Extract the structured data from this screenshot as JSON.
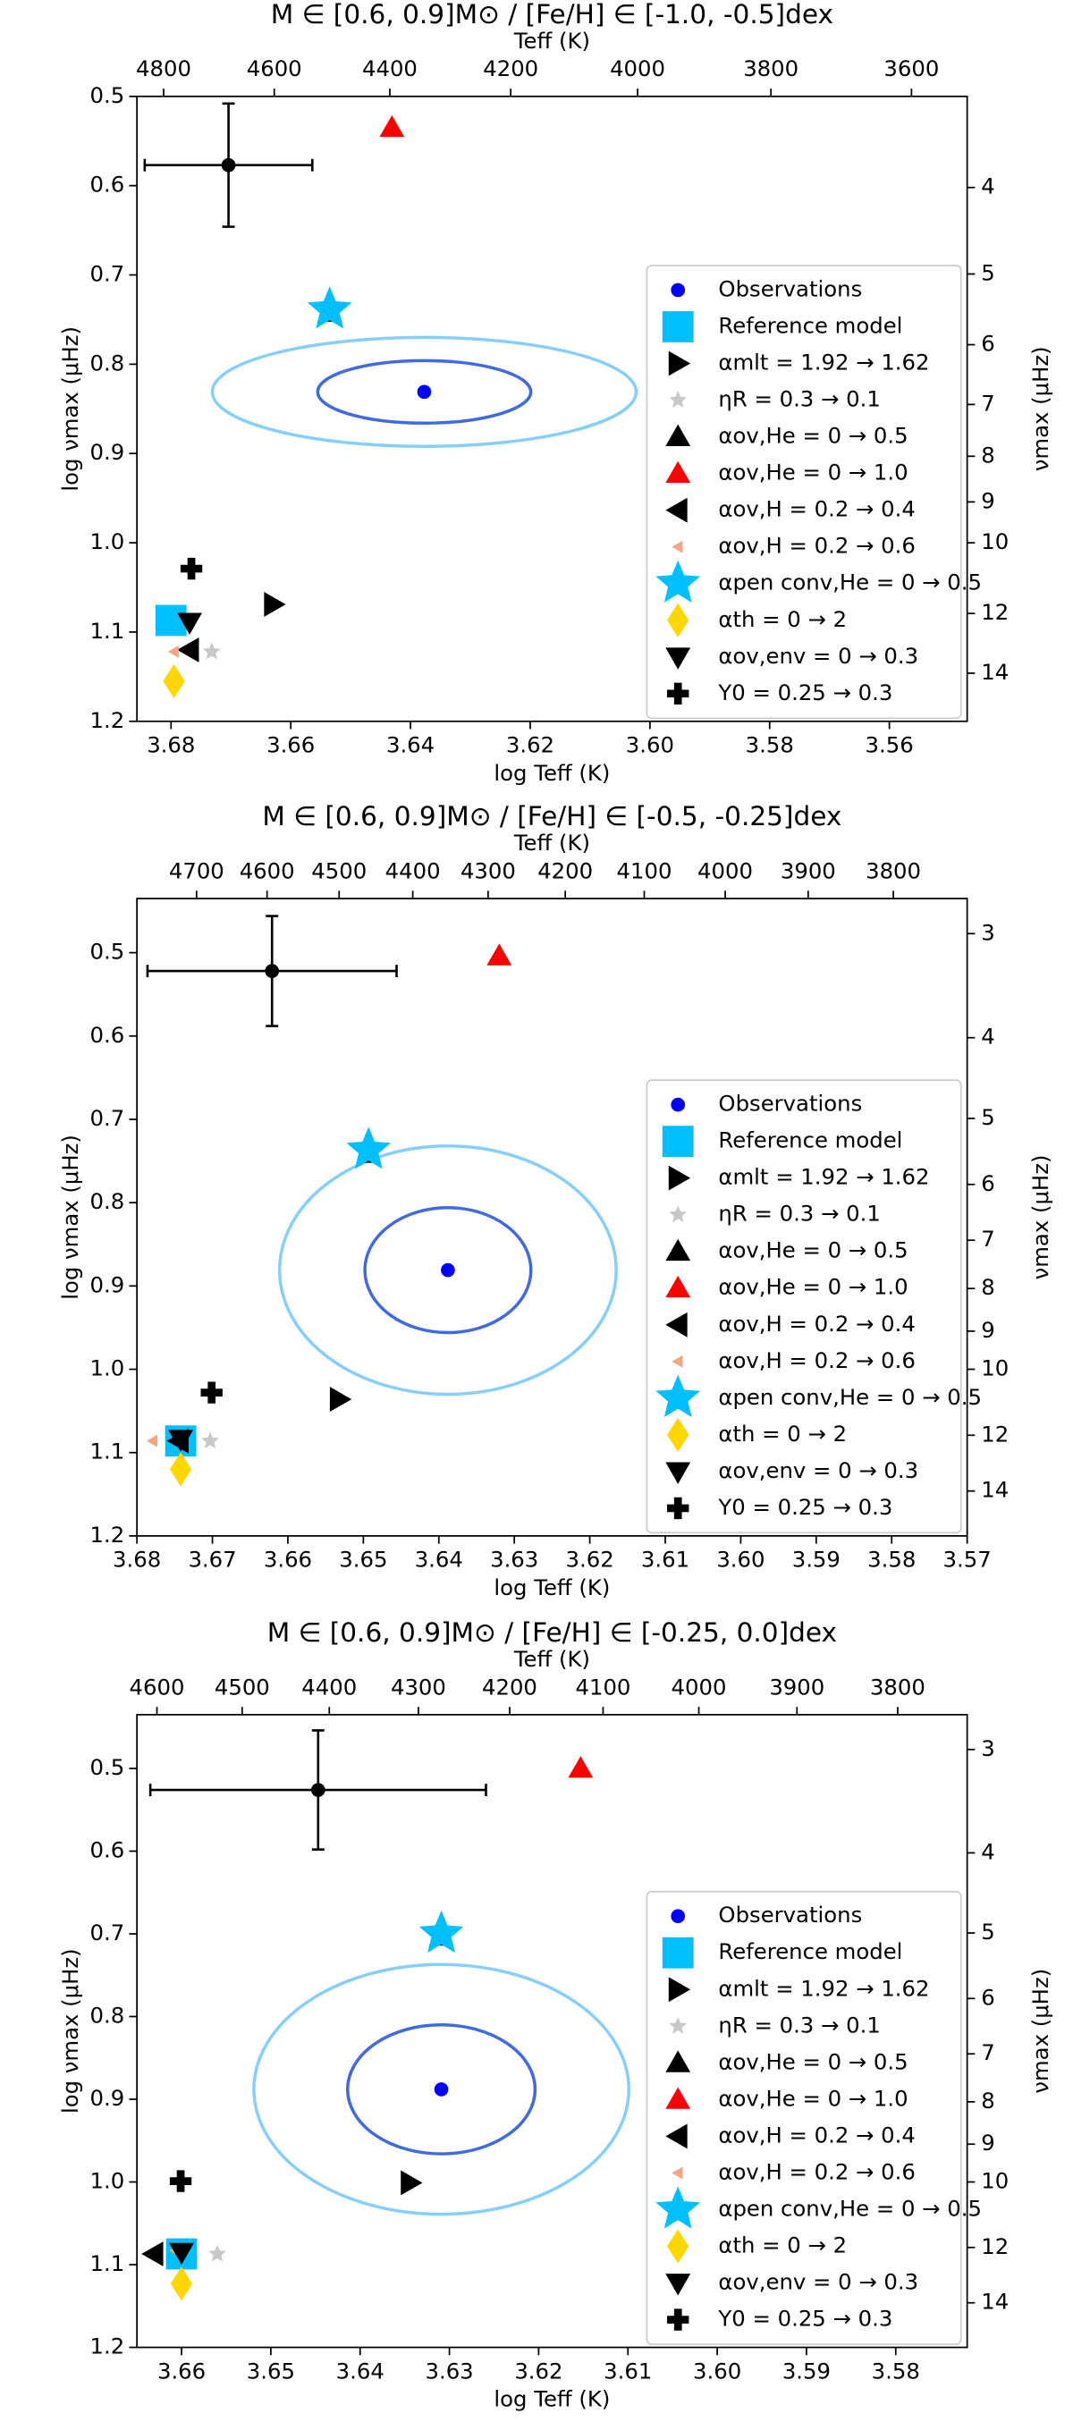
{
  "chart_data": [
    {
      "type": "scatter",
      "title": "M ∈ [0.6, 0.9]M⊙ / [Fe/H] ∈ [-1.0, -0.5]dex",
      "xlabel": "log Teff (K)",
      "ylabel": "log νmax (μHz)",
      "x2label": "Teff (K)",
      "y2label": "νmax (μHz)",
      "xlim": [
        3.6857,
        3.547
      ],
      "xticks": [
        3.68,
        3.66,
        3.64,
        3.62,
        {
          "value": 3.6,
          "label": "3.60"
        },
        3.58,
        3.56
      ],
      "ylim": [
        1.2,
        0.5
      ],
      "yticks": [
        0.5,
        0.6,
        0.7,
        0.8,
        0.9,
        {
          "value": 1,
          "label": "1.0"
        },
        1.1,
        1.2
      ],
      "x2scale": "log",
      "x2ticks": [
        4800,
        4600,
        4400,
        4200,
        4000,
        3800,
        3600
      ],
      "y2scale": "log",
      "y2ticks": [
        4,
        5,
        6,
        7,
        8,
        9,
        10,
        12,
        14
      ],
      "legend": "lower right",
      "errorbar": {
        "x": 3.6704,
        "y": 0.577,
        "xerr": 0.014,
        "yerr": 0.069,
        "color": "#000000"
      },
      "ellipses": [
        {
          "x": 3.6377,
          "y": 0.831,
          "rx": 0.0354,
          "ry": 0.061,
          "color": "#87cefa"
        },
        {
          "x": 3.6377,
          "y": 0.831,
          "rx": 0.0178,
          "ry": 0.035,
          "color": "#4169e1"
        }
      ],
      "series": [
        {
          "name": "Observations",
          "color": "#0000ff",
          "marker": "circle",
          "x": [
            3.6377
          ],
          "y": [
            0.831
          ]
        },
        {
          "name": "Reference model",
          "color": "#00bfff",
          "marker": "square",
          "x": [
            3.68
          ],
          "y": [
            1.087
          ]
        },
        {
          "name": "αmlt = 1.92 → 1.62",
          "color": "#000000",
          "marker": "triangle-right",
          "x": [
            3.6629
          ],
          "y": [
            1.069
          ]
        },
        {
          "name": "ηR = 0.3 → 0.1",
          "color": "#c8c8c8",
          "marker": "star-small",
          "x": [
            3.6732
          ],
          "y": [
            1.122
          ]
        },
        {
          "name": "αov,He = 0 → 0.5",
          "color": "#000000",
          "marker": "triangle-up",
          "x": [
            3.6535
          ],
          "y": [
            0.742
          ]
        },
        {
          "name": "αov,He = 0 → 1.0",
          "color": "#ff0000",
          "marker": "triangle-up",
          "x": [
            3.6431
          ],
          "y": [
            0.535
          ]
        },
        {
          "name": "αov,H = 0.2 → 0.4",
          "color": "#000000",
          "marker": "triangle-left",
          "x": [
            3.6769
          ],
          "y": [
            1.12
          ]
        },
        {
          "name": "αov,H = 0.2 → 0.6",
          "color": "#f4a582",
          "marker": "triangle-left-small",
          "x": [
            3.6795
          ],
          "y": [
            1.122
          ]
        },
        {
          "name": "αpen conv,He = 0 → 0.5",
          "color": "#00bfff",
          "marker": "star-large",
          "x": [
            3.6535
          ],
          "y": [
            0.739
          ]
        },
        {
          "name": "αth = 0 → 2",
          "color": "#ffd700",
          "marker": "diamond",
          "x": [
            3.6795
          ],
          "y": [
            1.155
          ]
        },
        {
          "name": "αov,env = 0 → 0.3",
          "color": "#000000",
          "marker": "triangle-down",
          "x": [
            3.6769
          ],
          "y": [
            1.089
          ]
        },
        {
          "name": "Y0 = 0.25 → 0.3",
          "color": "#000000",
          "marker": "plus",
          "x": [
            3.6766
          ],
          "y": [
            1.029
          ]
        }
      ]
    },
    {
      "type": "scatter",
      "title": "M ∈ [0.6, 0.9]M⊙ / [Fe/H] ∈ [-0.5, -0.25]dex",
      "xlabel": "log Teff (K)",
      "ylabel": "log νmax (μHz)",
      "x2label": "Teff (K)",
      "y2label": "νmax (μHz)",
      "xlim": [
        3.68,
        3.57
      ],
      "xticks": [
        3.68,
        3.67,
        3.66,
        3.65,
        3.64,
        3.63,
        3.62,
        3.61,
        {
          "value": 3.6,
          "label": "3.60"
        },
        3.59,
        3.58,
        3.57
      ],
      "ylim": [
        1.2,
        0.435
      ],
      "yticks": [
        0.5,
        0.6,
        0.7,
        0.8,
        0.9,
        {
          "value": 1,
          "label": "1.0"
        },
        1.1,
        1.2
      ],
      "x2scale": "log",
      "x2ticks": [
        4700,
        4600,
        4500,
        4400,
        4300,
        4200,
        4100,
        4000,
        3900,
        3800
      ],
      "y2scale": "log",
      "y2ticks": [
        3,
        4,
        5,
        6,
        7,
        8,
        9,
        10,
        12,
        14
      ],
      "legend": "lower right",
      "errorbar": {
        "x": 3.6621,
        "y": 0.522,
        "xerr": 0.0165,
        "yerr": 0.066,
        "color": "#000000"
      },
      "ellipses": [
        {
          "x": 3.6388,
          "y": 0.881,
          "rx": 0.0223,
          "ry": 0.149,
          "color": "#87cefa"
        },
        {
          "x": 3.6388,
          "y": 0.881,
          "rx": 0.011,
          "ry": 0.075,
          "color": "#4169e1"
        }
      ],
      "series": [
        {
          "name": "Observations",
          "color": "#0000ff",
          "marker": "circle",
          "x": [
            3.6388
          ],
          "y": [
            0.881
          ]
        },
        {
          "name": "Reference model",
          "color": "#00bfff",
          "marker": "square",
          "x": [
            3.6742
          ],
          "y": [
            1.086
          ]
        },
        {
          "name": "αmlt = 1.92 → 1.62",
          "color": "#000000",
          "marker": "triangle-right",
          "x": [
            3.6532
          ],
          "y": [
            1.036
          ]
        },
        {
          "name": "ηR = 0.3 → 0.1",
          "color": "#c8c8c8",
          "marker": "star-small",
          "x": [
            3.6703
          ],
          "y": [
            1.086
          ]
        },
        {
          "name": "αov,He = 0 → 0.5",
          "color": "#000000",
          "marker": "triangle-up",
          "x": [
            3.6493
          ],
          "y": [
            0.741
          ]
        },
        {
          "name": "αov,He = 0 → 1.0",
          "color": "#ff0000",
          "marker": "triangle-up",
          "x": [
            3.632
          ],
          "y": [
            0.504
          ]
        },
        {
          "name": "αov,H = 0.2 → 0.4",
          "color": "#000000",
          "marker": "triangle-left",
          "x": [
            3.6744
          ],
          "y": [
            1.086
          ]
        },
        {
          "name": "αov,H = 0.2 → 0.6",
          "color": "#f4a582",
          "marker": "triangle-left-small",
          "x": [
            3.6779
          ],
          "y": [
            1.086
          ]
        },
        {
          "name": "αpen conv,He = 0 → 0.5",
          "color": "#00bfff",
          "marker": "star-large",
          "x": [
            3.6493
          ],
          "y": [
            0.737
          ]
        },
        {
          "name": "αth = 0 → 2",
          "color": "#ffd700",
          "marker": "diamond",
          "x": [
            3.6742
          ],
          "y": [
            1.12
          ]
        },
        {
          "name": "αov,env = 0 → 0.3",
          "color": "#000000",
          "marker": "triangle-down",
          "x": [
            3.6742
          ],
          "y": [
            1.084
          ]
        },
        {
          "name": "Y0 = 0.25 → 0.3",
          "color": "#000000",
          "marker": "plus",
          "x": [
            3.6701
          ],
          "y": [
            1.028
          ]
        }
      ]
    },
    {
      "type": "scatter",
      "title": "M ∈ [0.6, 0.9]M⊙ / [Fe/H] ∈ [-0.25, 0.0]dex",
      "xlabel": "log Teff (K)",
      "ylabel": "log νmax (μHz)",
      "x2label": "Teff (K)",
      "y2label": "νmax (μHz)",
      "xlim": [
        3.665,
        3.572
      ],
      "xticks": [
        3.66,
        3.65,
        3.64,
        3.63,
        3.62,
        3.61,
        {
          "value": 3.6,
          "label": "3.60"
        },
        3.59,
        3.58
      ],
      "ylim": [
        1.2,
        0.435
      ],
      "yticks": [
        0.5,
        0.6,
        0.7,
        0.8,
        0.9,
        {
          "value": 1,
          "label": "1.0"
        },
        1.1,
        1.2
      ],
      "x2scale": "log",
      "x2ticks": [
        4600,
        4500,
        4400,
        4300,
        4200,
        4100,
        4000,
        3900,
        3800
      ],
      "y2scale": "log",
      "y2ticks": [
        3,
        4,
        5,
        6,
        7,
        8,
        9,
        10,
        12,
        14
      ],
      "legend": "lower right",
      "errorbar": {
        "x": 3.6447,
        "y": 0.526,
        "xerr": 0.0188,
        "yerr": 0.072,
        "color": "#000000"
      },
      "ellipses": [
        {
          "x": 3.6309,
          "y": 0.888,
          "rx": 0.021,
          "ry": 0.151,
          "color": "#87cefa"
        },
        {
          "x": 3.6309,
          "y": 0.888,
          "rx": 0.0105,
          "ry": 0.078,
          "color": "#4169e1"
        }
      ],
      "series": [
        {
          "name": "Observations",
          "color": "#0000ff",
          "marker": "circle",
          "x": [
            3.6309
          ],
          "y": [
            0.888
          ]
        },
        {
          "name": "Reference model",
          "color": "#00bfff",
          "marker": "square",
          "x": [
            3.66
          ],
          "y": [
            1.087
          ]
        },
        {
          "name": "αmlt = 1.92 → 1.62",
          "color": "#000000",
          "marker": "triangle-right",
          "x": [
            3.6344
          ],
          "y": [
            1.001
          ]
        },
        {
          "name": "ηR = 0.3 → 0.1",
          "color": "#c8c8c8",
          "marker": "star-small",
          "x": [
            3.656
          ],
          "y": [
            1.087
          ]
        },
        {
          "name": "αov,He = 0 → 0.5",
          "color": "#000000",
          "marker": "triangle-up",
          "x": [
            3.6309
          ],
          "y": [
            0.703
          ]
        },
        {
          "name": "αov,He = 0 → 1.0",
          "color": "#ff0000",
          "marker": "triangle-up",
          "x": [
            3.6153
          ],
          "y": [
            0.5
          ]
        },
        {
          "name": "αov,H = 0.2 → 0.4",
          "color": "#000000",
          "marker": "triangle-left",
          "x": [
            3.6631
          ],
          "y": [
            1.087
          ]
        },
        {
          "name": "αov,H = 0.2 → 0.6",
          "color": "#f4a582",
          "marker": "triangle-left-small",
          "x": [
            3.6607
          ],
          "y": [
            1.083
          ]
        },
        {
          "name": "αpen conv,He = 0 → 0.5",
          "color": "#00bfff",
          "marker": "star-large",
          "x": [
            3.6309
          ],
          "y": [
            0.7
          ]
        },
        {
          "name": "αth = 0 → 2",
          "color": "#ffd700",
          "marker": "diamond",
          "x": [
            3.66
          ],
          "y": [
            1.123
          ]
        },
        {
          "name": "αov,env = 0 → 0.3",
          "color": "#000000",
          "marker": "triangle-down",
          "x": [
            3.66
          ],
          "y": [
            1.085
          ]
        },
        {
          "name": "Y0 = 0.25 → 0.3",
          "color": "#000000",
          "marker": "plus",
          "x": [
            3.6601
          ],
          "y": [
            0.999
          ]
        }
      ]
    }
  ]
}
